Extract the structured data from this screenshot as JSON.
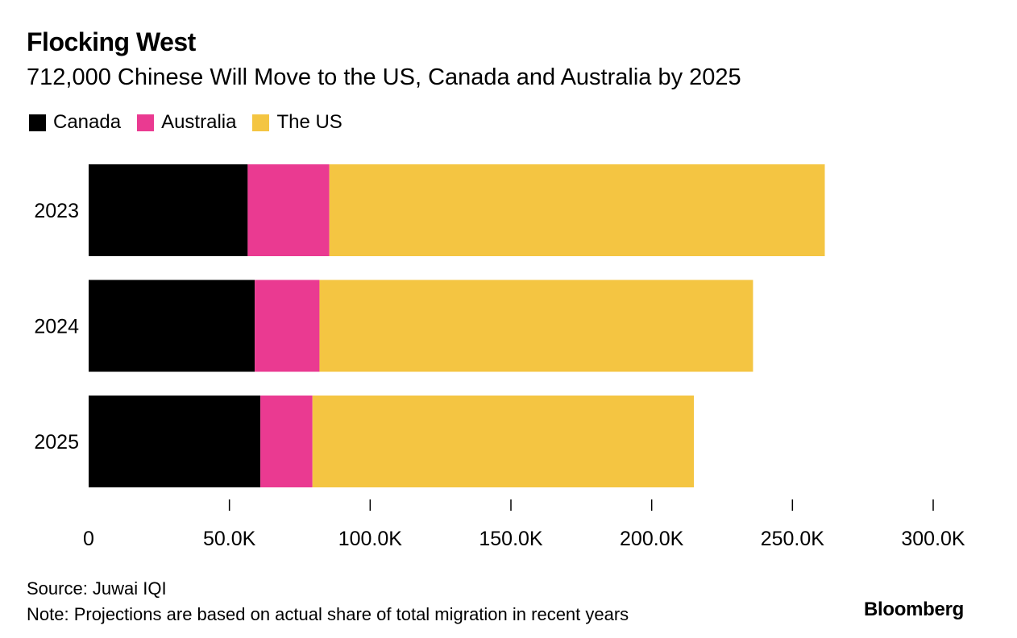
{
  "chart_data": {
    "type": "bar",
    "orientation": "horizontal",
    "stacked": true,
    "title": "Flocking West",
    "subtitle": "712,000 Chinese Will Move to the US, Canada and Australia by 2025",
    "categories": [
      "2023",
      "2024",
      "2025"
    ],
    "series": [
      {
        "name": "Canada",
        "color": "#000000",
        "values": [
          56500,
          59000,
          61000
        ]
      },
      {
        "name": "Australia",
        "color": "#ea3a91",
        "values": [
          29000,
          23000,
          18500
        ]
      },
      {
        "name": "The US",
        "color": "#f4c542",
        "values": [
          176000,
          154000,
          135500
        ]
      }
    ],
    "xlim": [
      0,
      300000
    ],
    "xticks": [
      {
        "value": 0,
        "label": "0"
      },
      {
        "value": 50000,
        "label": "50.0K"
      },
      {
        "value": 100000,
        "label": "100.0K"
      },
      {
        "value": 150000,
        "label": "150.0K"
      },
      {
        "value": 200000,
        "label": "200.0K"
      },
      {
        "value": 250000,
        "label": "250.0K"
      },
      {
        "value": 300000,
        "label": "300.0K"
      }
    ],
    "legend_position": "top-left",
    "grid": false
  },
  "footer": {
    "source": "Source: Juwai IQI",
    "note": "Note: Projections are based on actual share of total migration in recent years",
    "brand": "Bloomberg"
  }
}
